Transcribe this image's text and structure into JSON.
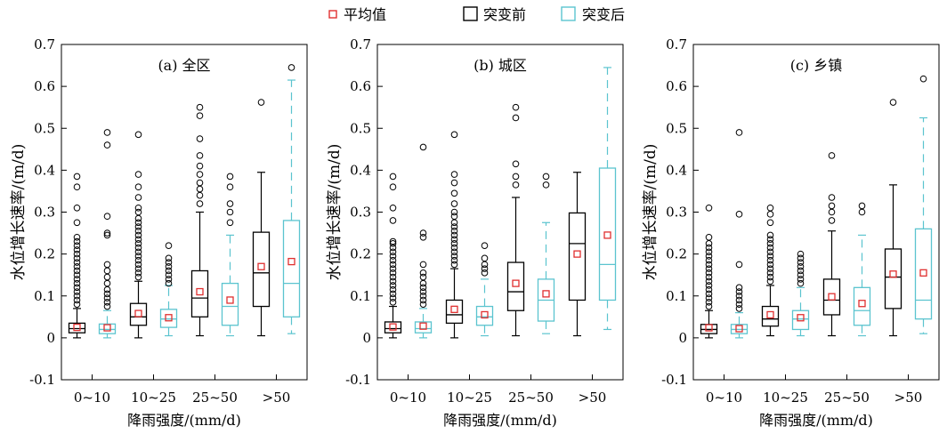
{
  "legend": {
    "mean": "平均值",
    "before": "突变前",
    "after": "突变后"
  },
  "colors": {
    "before": "#000000",
    "after": "#5bc4cf",
    "mean": "#e03030"
  },
  "chart_data": [
    {
      "type": "box",
      "title": "(a) 全区",
      "xlabel": "降雨强度/(mm/d)",
      "ylabel": "水位增长速率/(m/d)",
      "ylim": [
        -0.1,
        0.7
      ],
      "yticks": [
        "-0.1",
        "0",
        "0.1",
        "0.2",
        "0.3",
        "0.4",
        "0.5",
        "0.6",
        "0.7"
      ],
      "categories": [
        "0~10",
        "10~25",
        "25~50",
        ">50"
      ],
      "series": [
        {
          "name": "突变前",
          "boxes": [
            {
              "min": 0.0,
              "q1": 0.012,
              "median": 0.022,
              "q3": 0.035,
              "max": 0.07,
              "mean": 0.025,
              "outliers": [
                0.08,
                0.09,
                0.1,
                0.11,
                0.12,
                0.13,
                0.14,
                0.15,
                0.16,
                0.17,
                0.18,
                0.19,
                0.2,
                0.21,
                0.22,
                0.23,
                0.24,
                0.275,
                0.31,
                0.36,
                0.385
              ]
            },
            {
              "min": 0.0,
              "q1": 0.03,
              "median": 0.05,
              "q3": 0.082,
              "max": 0.135,
              "mean": 0.058,
              "outliers": [
                0.145,
                0.155,
                0.165,
                0.175,
                0.185,
                0.195,
                0.205,
                0.215,
                0.225,
                0.235,
                0.245,
                0.255,
                0.265,
                0.275,
                0.285,
                0.3,
                0.31,
                0.335,
                0.36,
                0.39,
                0.485
              ]
            },
            {
              "min": 0.005,
              "q1": 0.05,
              "median": 0.095,
              "q3": 0.16,
              "max": 0.3,
              "mean": 0.11,
              "outliers": [
                0.32,
                0.34,
                0.355,
                0.37,
                0.39,
                0.41,
                0.435,
                0.475,
                0.53,
                0.55
              ]
            },
            {
              "min": 0.005,
              "q1": 0.075,
              "median": 0.155,
              "q3": 0.252,
              "max": 0.395,
              "mean": 0.17,
              "outliers": [
                0.562
              ]
            }
          ]
        },
        {
          "name": "突变后",
          "boxes": [
            {
              "min": 0.0,
              "q1": 0.01,
              "median": 0.02,
              "q3": 0.033,
              "max": 0.065,
              "mean": 0.024,
              "outliers": [
                0.075,
                0.085,
                0.095,
                0.105,
                0.115,
                0.13,
                0.145,
                0.16,
                0.175,
                0.245,
                0.25,
                0.29,
                0.46,
                0.49
              ]
            },
            {
              "min": 0.005,
              "q1": 0.025,
              "median": 0.045,
              "q3": 0.068,
              "max": 0.125,
              "mean": 0.048,
              "outliers": [
                0.13,
                0.14,
                0.15,
                0.16,
                0.17,
                0.18,
                0.19,
                0.22
              ]
            },
            {
              "min": 0.005,
              "q1": 0.03,
              "median": 0.075,
              "q3": 0.13,
              "max": 0.245,
              "mean": 0.09,
              "outliers": [
                0.275,
                0.3,
                0.32,
                0.36,
                0.385
              ]
            },
            {
              "min": 0.01,
              "q1": 0.05,
              "median": 0.13,
              "q3": 0.28,
              "max": 0.615,
              "mean": 0.182,
              "outliers": [
                0.645
              ]
            }
          ]
        }
      ]
    },
    {
      "type": "box",
      "title": "(b) 城区",
      "xlabel": "降雨强度/(mm/d)",
      "ylabel": "水位增长速率/(m/d)",
      "ylim": [
        -0.1,
        0.7
      ],
      "yticks": [
        "-0.1",
        "0",
        "0.1",
        "0.2",
        "0.3",
        "0.4",
        "0.5",
        "0.6",
        "0.7"
      ],
      "categories": [
        "0~10",
        "10~25",
        "25~50",
        ">50"
      ],
      "series": [
        {
          "name": "突变前",
          "boxes": [
            {
              "min": 0.0,
              "q1": 0.012,
              "median": 0.022,
              "q3": 0.038,
              "max": 0.075,
              "mean": 0.026,
              "outliers": [
                0.085,
                0.095,
                0.105,
                0.115,
                0.125,
                0.135,
                0.145,
                0.155,
                0.165,
                0.175,
                0.185,
                0.195,
                0.205,
                0.215,
                0.225,
                0.23,
                0.28,
                0.31,
                0.36,
                0.385
              ]
            },
            {
              "min": 0.0,
              "q1": 0.035,
              "median": 0.055,
              "q3": 0.09,
              "max": 0.165,
              "mean": 0.068,
              "outliers": [
                0.175,
                0.185,
                0.195,
                0.205,
                0.215,
                0.225,
                0.235,
                0.245,
                0.255,
                0.265,
                0.275,
                0.29,
                0.3,
                0.32,
                0.345,
                0.37,
                0.39,
                0.485
              ]
            },
            {
              "min": 0.005,
              "q1": 0.065,
              "median": 0.11,
              "q3": 0.18,
              "max": 0.335,
              "mean": 0.13,
              "outliers": [
                0.365,
                0.385,
                0.415,
                0.525,
                0.55
              ]
            },
            {
              "min": 0.005,
              "q1": 0.09,
              "median": 0.225,
              "q3": 0.298,
              "max": 0.395,
              "mean": 0.2
            }
          ]
        },
        {
          "name": "突变后",
          "boxes": [
            {
              "min": 0.0,
              "q1": 0.012,
              "median": 0.022,
              "q3": 0.038,
              "max": 0.07,
              "mean": 0.028,
              "outliers": [
                0.08,
                0.09,
                0.1,
                0.11,
                0.12,
                0.13,
                0.145,
                0.155,
                0.175,
                0.24,
                0.25,
                0.455
              ]
            },
            {
              "min": 0.005,
              "q1": 0.03,
              "median": 0.05,
              "q3": 0.075,
              "max": 0.14,
              "mean": 0.055,
              "outliers": [
                0.155,
                0.165,
                0.175,
                0.19,
                0.22
              ]
            },
            {
              "min": 0.01,
              "q1": 0.04,
              "median": 0.09,
              "q3": 0.14,
              "max": 0.275,
              "mean": 0.105,
              "outliers": [
                0.365,
                0.385
              ]
            },
            {
              "min": 0.02,
              "q1": 0.09,
              "median": 0.175,
              "q3": 0.405,
              "max": 0.645,
              "mean": 0.245
            }
          ]
        }
      ]
    },
    {
      "type": "box",
      "title": "(c) 乡镇",
      "xlabel": "降雨强度/(mm/d)",
      "ylabel": "水位增长速率/(m/d)",
      "ylim": [
        -0.1,
        0.7
      ],
      "yticks": [
        "-0.1",
        "0",
        "0.1",
        "0.2",
        "0.3",
        "0.4",
        "0.5",
        "0.6",
        "0.7"
      ],
      "categories": [
        "0~10",
        "10~25",
        "25~50",
        ">50"
      ],
      "series": [
        {
          "name": "突变前",
          "boxes": [
            {
              "min": 0.0,
              "q1": 0.01,
              "median": 0.02,
              "q3": 0.032,
              "max": 0.065,
              "mean": 0.024,
              "outliers": [
                0.075,
                0.085,
                0.095,
                0.105,
                0.115,
                0.125,
                0.135,
                0.145,
                0.155,
                0.165,
                0.175,
                0.185,
                0.195,
                0.205,
                0.215,
                0.225,
                0.24,
                0.31
              ]
            },
            {
              "min": 0.005,
              "q1": 0.028,
              "median": 0.045,
              "q3": 0.075,
              "max": 0.125,
              "mean": 0.055,
              "outliers": [
                0.135,
                0.145,
                0.155,
                0.165,
                0.175,
                0.185,
                0.195,
                0.205,
                0.215,
                0.225,
                0.235,
                0.245,
                0.275,
                0.295,
                0.31
              ]
            },
            {
              "min": 0.005,
              "q1": 0.055,
              "median": 0.09,
              "q3": 0.14,
              "max": 0.255,
              "mean": 0.098,
              "outliers": [
                0.28,
                0.3,
                0.315,
                0.335,
                0.435
              ]
            },
            {
              "min": 0.005,
              "q1": 0.07,
              "median": 0.145,
              "q3": 0.212,
              "max": 0.365,
              "mean": 0.152,
              "outliers": [
                0.562
              ]
            }
          ]
        },
        {
          "name": "突变后",
          "boxes": [
            {
              "min": 0.0,
              "q1": 0.01,
              "median": 0.02,
              "q3": 0.032,
              "max": 0.06,
              "mean": 0.022,
              "outliers": [
                0.07,
                0.08,
                0.09,
                0.1,
                0.11,
                0.12,
                0.175,
                0.295,
                0.49
              ]
            },
            {
              "min": 0.005,
              "q1": 0.02,
              "median": 0.045,
              "q3": 0.065,
              "max": 0.12,
              "mean": 0.048,
              "outliers": [
                0.13,
                0.14,
                0.15,
                0.16,
                0.17,
                0.18,
                0.19,
                0.2
              ]
            },
            {
              "min": 0.005,
              "q1": 0.03,
              "median": 0.065,
              "q3": 0.12,
              "max": 0.245,
              "mean": 0.082,
              "outliers": [
                0.3,
                0.315
              ]
            },
            {
              "min": 0.01,
              "q1": 0.045,
              "median": 0.09,
              "q3": 0.26,
              "max": 0.525,
              "mean": 0.155,
              "outliers": [
                0.618
              ]
            }
          ]
        }
      ]
    }
  ]
}
